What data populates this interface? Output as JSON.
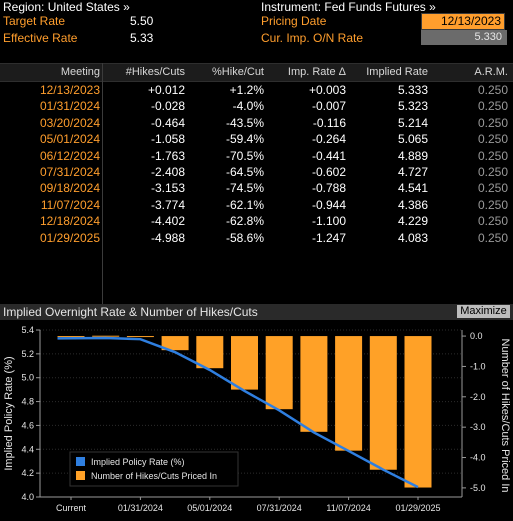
{
  "header": {
    "region": "Region: United States »",
    "instrument": "Instrument: Fed Funds Futures »",
    "target_rate_label": "Target Rate",
    "target_rate_value": "5.50",
    "effective_rate_label": "Effective Rate",
    "effective_rate_value": "5.33",
    "pricing_date_label": "Pricing Date",
    "pricing_date_value": "12/13/2023",
    "cur_imp_label": "Cur. Imp. O/N Rate",
    "cur_imp_value": "5.330"
  },
  "table": {
    "columns": [
      "Meeting",
      "#Hikes/Cuts",
      "%Hike/Cut",
      "Imp. Rate Δ",
      "Implied Rate",
      "A.R.M."
    ],
    "rows": [
      {
        "meeting": "12/13/2023",
        "hikes": "+0.012",
        "pct": "+1.2%",
        "delta": "+0.003",
        "rate": "5.333",
        "arm": "0.250"
      },
      {
        "meeting": "01/31/2024",
        "hikes": "-0.028",
        "pct": "-4.0%",
        "delta": "-0.007",
        "rate": "5.323",
        "arm": "0.250"
      },
      {
        "meeting": "03/20/2024",
        "hikes": "-0.464",
        "pct": "-43.5%",
        "delta": "-0.116",
        "rate": "5.214",
        "arm": "0.250"
      },
      {
        "meeting": "05/01/2024",
        "hikes": "-1.058",
        "pct": "-59.4%",
        "delta": "-0.264",
        "rate": "5.065",
        "arm": "0.250"
      },
      {
        "meeting": "06/12/2024",
        "hikes": "-1.763",
        "pct": "-70.5%",
        "delta": "-0.441",
        "rate": "4.889",
        "arm": "0.250"
      },
      {
        "meeting": "07/31/2024",
        "hikes": "-2.408",
        "pct": "-64.5%",
        "delta": "-0.602",
        "rate": "4.727",
        "arm": "0.250"
      },
      {
        "meeting": "09/18/2024",
        "hikes": "-3.153",
        "pct": "-74.5%",
        "delta": "-0.788",
        "rate": "4.541",
        "arm": "0.250"
      },
      {
        "meeting": "11/07/2024",
        "hikes": "-3.774",
        "pct": "-62.1%",
        "delta": "-0.944",
        "rate": "4.386",
        "arm": "0.250"
      },
      {
        "meeting": "12/18/2024",
        "hikes": "-4.402",
        "pct": "-62.8%",
        "delta": "-1.100",
        "rate": "4.229",
        "arm": "0.250"
      },
      {
        "meeting": "01/29/2025",
        "hikes": "-4.988",
        "pct": "-58.6%",
        "delta": "-1.247",
        "rate": "4.083",
        "arm": "0.250"
      }
    ]
  },
  "chart_panel": {
    "title": "Implied Overnight Rate & Number of Hikes/Cuts",
    "maximize_label": "Maximize"
  },
  "chart_data": {
    "type": "bar",
    "title": "Implied Overnight Rate & Number of Hikes/Cuts",
    "categories": [
      "Current",
      "12/13/2023",
      "01/31/2024",
      "03/20/2024",
      "05/01/2024",
      "06/12/2024",
      "07/31/2024",
      "09/18/2024",
      "11/07/2024",
      "12/18/2024",
      "01/29/2025"
    ],
    "x_tick_labels": [
      "Current",
      "01/31/2024",
      "05/01/2024",
      "07/31/2024",
      "11/07/2024",
      "01/29/2025"
    ],
    "ylabel_left": "Implied Policy Rate (%)",
    "ylabel_right": "Number of Hikes/Cuts Priced In",
    "ylim_left": [
      4.0,
      5.4
    ],
    "yticks_left": [
      4.0,
      4.2,
      4.4,
      4.6,
      4.8,
      5.0,
      5.2,
      5.4
    ],
    "ylim_right": [
      -5.3,
      0.2
    ],
    "yticks_right": [
      0.0,
      -1.0,
      -2.0,
      -3.0,
      -4.0,
      -5.0
    ],
    "series": [
      {
        "name": "Implied Policy Rate (%)",
        "kind": "line",
        "axis": "left",
        "color": "#2f7fe0",
        "values": [
          5.33,
          5.333,
          5.323,
          5.214,
          5.065,
          4.889,
          4.727,
          4.541,
          4.386,
          4.229,
          4.083
        ]
      },
      {
        "name": "Number of Hikes/Cuts Priced In",
        "kind": "bar",
        "axis": "right",
        "color": "#ffa127",
        "values": [
          0.0,
          0.012,
          -0.028,
          -0.464,
          -1.058,
          -1.763,
          -2.408,
          -3.153,
          -3.774,
          -4.402,
          -4.988
        ]
      }
    ],
    "legend_position": "bottom-left",
    "grid": true
  }
}
